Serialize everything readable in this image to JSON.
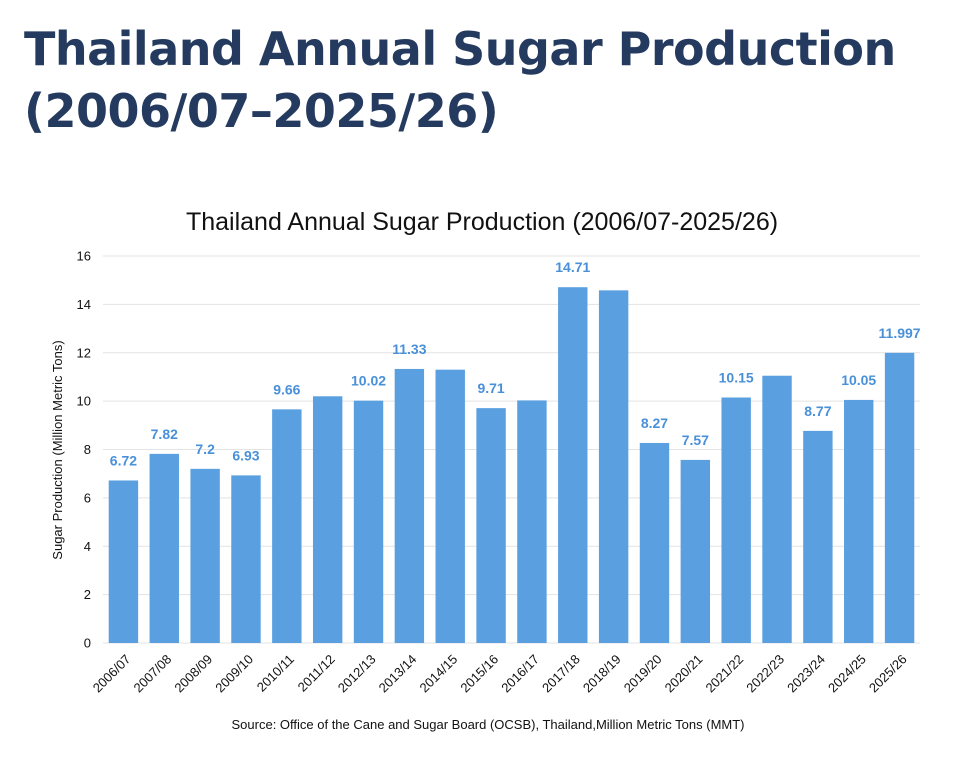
{
  "page": {
    "heading_line1": "Thailand Annual Sugar Production",
    "heading_line2": "(2006/07–2025/26)"
  },
  "colors": {
    "heading": "#243a5e",
    "bar": "#5aa0e0",
    "data_label": "#4a90d9",
    "grid": "#e3e3e3"
  },
  "chart_data": {
    "type": "bar",
    "title": "Thailand Annual Sugar Production (2006/07-2025/26)",
    "xlabel": "",
    "ylabel": "Sugar Production (Million Metric Tons)",
    "ylim": [
      0,
      16
    ],
    "yticks": [
      0,
      2,
      4,
      6,
      8,
      10,
      12,
      14,
      16
    ],
    "grid": true,
    "categories": [
      "2006/07",
      "2007/08",
      "2008/09",
      "2009/10",
      "2010/11",
      "2011/12",
      "2012/13",
      "2013/14",
      "2014/15",
      "2015/16",
      "2016/17",
      "2017/18",
      "2018/19",
      "2019/20",
      "2020/21",
      "2021/22",
      "2022/23",
      "2023/24",
      "2024/25",
      "2025/26"
    ],
    "values": [
      6.72,
      7.82,
      7.2,
      6.93,
      9.66,
      10.2,
      10.02,
      11.33,
      11.3,
      9.71,
      10.03,
      14.71,
      14.58,
      8.27,
      7.57,
      10.15,
      11.05,
      8.77,
      10.05,
      11.997
    ],
    "data_labels": [
      "6.72",
      "7.82",
      "7.2",
      "6.93",
      "9.66",
      "",
      "10.02",
      "11.33",
      "",
      "9.71",
      "",
      "14.71",
      "",
      "8.27",
      "7.57",
      "10.15",
      "",
      "8.77",
      "10.05",
      "11.997"
    ],
    "source": "Source: Office of the Cane and Sugar Board (OCSB), Thailand,Million Metric Tons (MMT)"
  }
}
